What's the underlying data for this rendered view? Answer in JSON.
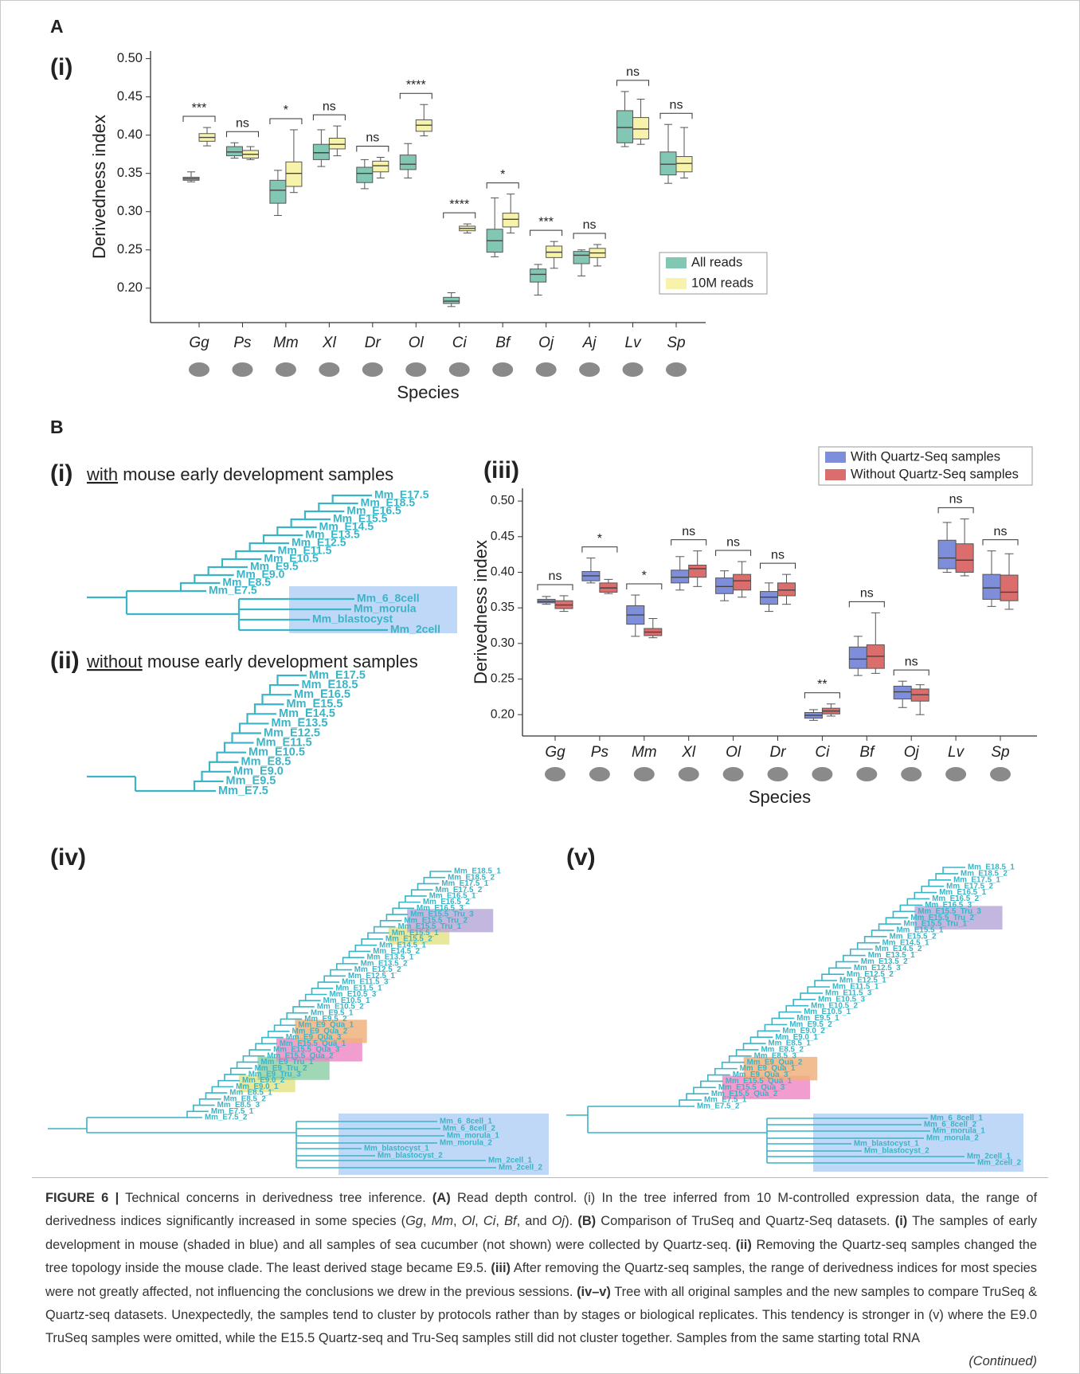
{
  "panels": [
    "A",
    "B"
  ],
  "chart_data": [
    {
      "type": "box",
      "label": "(i)",
      "xlabel": "Species",
      "ylabel": "Derivedness index",
      "categories": [
        "Gg",
        "Ps",
        "Mm",
        "Xl",
        "Dr",
        "Ol",
        "Ci",
        "Bf",
        "Oj",
        "Aj",
        "Lv",
        "Sp"
      ],
      "series": [
        {
          "name": "All reads",
          "color": "#82c7b4",
          "whisker_low": [
            0.339,
            0.37,
            0.295,
            0.359,
            0.33,
            0.344,
            0.176,
            0.241,
            0.191,
            0.216,
            0.385,
            0.337
          ],
          "q1": [
            0.341,
            0.373,
            0.311,
            0.368,
            0.338,
            0.355,
            0.18,
            0.247,
            0.208,
            0.232,
            0.39,
            0.348
          ],
          "median": [
            0.343,
            0.378,
            0.328,
            0.377,
            0.35,
            0.362,
            0.183,
            0.262,
            0.218,
            0.243,
            0.41,
            0.362
          ],
          "q3": [
            0.345,
            0.385,
            0.341,
            0.388,
            0.358,
            0.374,
            0.188,
            0.277,
            0.225,
            0.248,
            0.432,
            0.378
          ],
          "whisker_high": [
            0.352,
            0.39,
            0.354,
            0.407,
            0.368,
            0.389,
            0.194,
            0.318,
            0.231,
            0.25,
            0.457,
            0.414
          ]
        },
        {
          "name": "10M reads",
          "color": "#f7f3aa",
          "whisker_low": [
            0.386,
            0.368,
            0.325,
            0.373,
            0.344,
            0.399,
            0.272,
            0.272,
            0.226,
            0.229,
            0.388,
            0.344
          ],
          "q1": [
            0.392,
            0.37,
            0.333,
            0.382,
            0.352,
            0.405,
            0.275,
            0.28,
            0.24,
            0.24,
            0.395,
            0.352
          ],
          "median": [
            0.397,
            0.375,
            0.35,
            0.388,
            0.36,
            0.413,
            0.278,
            0.29,
            0.247,
            0.246,
            0.408,
            0.363
          ],
          "q3": [
            0.402,
            0.38,
            0.365,
            0.396,
            0.366,
            0.42,
            0.281,
            0.298,
            0.255,
            0.252,
            0.423,
            0.372
          ],
          "whisker_high": [
            0.41,
            0.385,
            0.407,
            0.412,
            0.371,
            0.44,
            0.284,
            0.323,
            0.261,
            0.257,
            0.447,
            0.41
          ]
        }
      ],
      "significance": [
        "***",
        "ns",
        "*",
        "ns",
        "ns",
        "****",
        "****",
        "*",
        "***",
        "ns",
        "ns",
        "ns"
      ],
      "ylim": [
        0.155,
        0.51
      ],
      "yticks": [
        {
          "value": 0.2,
          "label": "0.20"
        },
        {
          "value": 0.25,
          "label": "0.25"
        },
        {
          "value": 0.3,
          "label": "0.30"
        },
        {
          "value": 0.35,
          "label": "0.35"
        },
        {
          "value": 0.4,
          "label": "0.40"
        },
        {
          "value": 0.45,
          "label": "0.45"
        },
        {
          "value": 0.5,
          "label": "0.50"
        }
      ],
      "legend": "lower right"
    },
    {
      "type": "box",
      "label": "(iii)",
      "xlabel": "Species",
      "ylabel": "Derivedness index",
      "categories": [
        "Gg",
        "Ps",
        "Mm",
        "Xl",
        "Ol",
        "Dr",
        "Ci",
        "Bf",
        "Oj",
        "Lv",
        "Sp"
      ],
      "series": [
        {
          "name": "With Quartz-Seq samples",
          "color": "#7f8edb",
          "whisker_low": [
            0.355,
            0.385,
            0.31,
            0.375,
            0.36,
            0.345,
            0.192,
            0.255,
            0.21,
            0.4,
            0.352
          ],
          "q1": [
            0.357,
            0.388,
            0.327,
            0.385,
            0.37,
            0.355,
            0.195,
            0.265,
            0.222,
            0.405,
            0.362
          ],
          "median": [
            0.359,
            0.395,
            0.34,
            0.393,
            0.38,
            0.365,
            0.199,
            0.278,
            0.232,
            0.42,
            0.378
          ],
          "q3": [
            0.362,
            0.401,
            0.353,
            0.403,
            0.392,
            0.373,
            0.203,
            0.295,
            0.24,
            0.445,
            0.397
          ],
          "whisker_high": [
            0.366,
            0.42,
            0.368,
            0.422,
            0.402,
            0.385,
            0.207,
            0.31,
            0.247,
            0.47,
            0.43
          ]
        },
        {
          "name": "Without Quartz-Seq samples",
          "color": "#dc6d6d",
          "whisker_low": [
            0.345,
            0.37,
            0.308,
            0.38,
            0.365,
            0.355,
            0.198,
            0.258,
            0.2,
            0.395,
            0.348
          ],
          "q1": [
            0.349,
            0.372,
            0.311,
            0.393,
            0.375,
            0.367,
            0.201,
            0.265,
            0.219,
            0.4,
            0.36
          ],
          "median": [
            0.354,
            0.378,
            0.316,
            0.405,
            0.388,
            0.375,
            0.205,
            0.282,
            0.228,
            0.417,
            0.372
          ],
          "q3": [
            0.36,
            0.385,
            0.321,
            0.41,
            0.397,
            0.385,
            0.209,
            0.298,
            0.236,
            0.44,
            0.396
          ],
          "whisker_high": [
            0.367,
            0.39,
            0.335,
            0.43,
            0.415,
            0.397,
            0.215,
            0.343,
            0.242,
            0.475,
            0.426
          ]
        }
      ],
      "significance": [
        "ns",
        "*",
        "*",
        "ns",
        "ns",
        "ns",
        "**",
        "ns",
        "ns",
        "ns",
        "ns"
      ],
      "ylim": [
        0.17,
        0.518
      ],
      "yticks": [
        {
          "value": 0.2,
          "label": "0.20"
        },
        {
          "value": 0.25,
          "label": "0.25"
        },
        {
          "value": 0.3,
          "label": "0.30"
        },
        {
          "value": 0.35,
          "label": "0.35"
        },
        {
          "value": 0.4,
          "label": "0.40"
        },
        {
          "value": 0.45,
          "label": "0.45"
        },
        {
          "value": 0.5,
          "label": "0.50"
        }
      ],
      "legend": "above right"
    }
  ],
  "trees": [
    {
      "label": "(i)",
      "title": [
        "with",
        " mouse early development samples"
      ],
      "ladder": [
        "Mm_E7.5",
        "Mm_E8.5",
        "Mm_E9.0",
        "Mm_E9.5",
        "Mm_E10.5",
        "Mm_E11.5",
        "Mm_E12.5",
        "Mm_E13.5",
        "Mm_E14.5",
        "Mm_E15.5",
        "Mm_E16.5",
        "Mm_E18.5",
        "Mm_E17.5"
      ],
      "clade": [
        "Mm_6_8cell",
        "Mm_morula",
        "Mm_blastocyst",
        "Mm_2cell"
      ]
    },
    {
      "label": "(ii)",
      "title": [
        "without",
        " mouse early development samples"
      ],
      "ladder": [
        "Mm_E7.5",
        "Mm_E9.5",
        "Mm_E9.0",
        "Mm_E8.5",
        "Mm_E10.5",
        "Mm_E11.5",
        "Mm_E12.5",
        "Mm_E13.5",
        "Mm_E14.5",
        "Mm_E15.5",
        "Mm_E16.5",
        "Mm_E18.5",
        "Mm_E17.5"
      ]
    },
    {
      "label": "(iv)",
      "ladder": [
        "Mm_E7.5_2",
        "Mm_E7.5_1",
        "Mm_E8.5_3",
        "Mm_E8.5_2",
        "Mm_E8.5_1",
        "Mm_E9.0_1",
        "Mm_E9.0_2",
        "Mm_E9_Tru_3",
        "Mm_E9_Tru_2",
        "Mm_E9_Tru_1",
        "Mm_E15.5_Qua_2",
        "Mm_E15.5_Qua_3",
        "Mm_E15.5_Qua_1",
        "Mm_E9_Qua_3",
        "Mm_E9_Qua_2",
        "Mm_E9_Qua_1",
        "Mm_E9.5_2",
        "Mm_E9.5_1",
        "Mm_E10.5_2",
        "Mm_E10.5_1",
        "Mm_E10.5_3",
        "Mm_E11.5_1",
        "Mm_E11.5_3",
        "Mm_E12.5_1",
        "Mm_E12.5_2",
        "Mm_E13.5_2",
        "Mm_E13.5_1",
        "Mm_E14.5_2",
        "Mm_E14.5_1",
        "Mm_E15.5_2",
        "Mm_E15.5_1",
        "Mm_E15.5_Tru_1",
        "Mm_E15.5_Tru_2",
        "Mm_E15.5_Tru_3",
        "Mm_E16.5_3",
        "Mm_E16.5_2",
        "Mm_E16.5_1",
        "Mm_E17.5_2",
        "Mm_E17.5_1",
        "Mm_E18.5_2",
        "Mm_E18.5_1"
      ],
      "clade": [
        "Mm_6_8cell_1",
        "Mm_6_8cell_2",
        "Mm_morula_1",
        "Mm_morula_2",
        "Mm_blastocyst_1",
        "Mm_blastocyst_2",
        "Mm_2cell_1",
        "Mm_2cell_2"
      ]
    },
    {
      "label": "(v)",
      "ladder": [
        "Mm_E7.5_2",
        "Mm_E7.5_1",
        "Mm_E15.5_Qua_2",
        "Mm_E15.5_Qua_3",
        "Mm_E15.5_Qua_1",
        "Mm_E9_Qua_3",
        "Mm_E9_Qua_1",
        "Mm_E9_Qua_2",
        "Mm_E8.5_3",
        "Mm_E8.5_2",
        "Mm_E8.5_1",
        "Mm_E9.0_1",
        "Mm_E9.0_2",
        "Mm_E9.5_2",
        "Mm_E9.5_1",
        "Mm_E10.5_1",
        "Mm_E10.5_2",
        "Mm_E10.5_3",
        "Mm_E11.5_3",
        "Mm_E11.5_1",
        "Mm_E12.5_1",
        "Mm_E12.5_2",
        "Mm_E12.5_3",
        "Mm_E13.5_2",
        "Mm_E13.5_1",
        "Mm_E14.5_2",
        "Mm_E14.5_1",
        "Mm_E15.5_2",
        "Mm_E15.5_1",
        "Mm_E15.5_Tru_1",
        "Mm_E15.5_Tru_2",
        "Mm_E15.5_Tru_3",
        "Mm_E16.5_3",
        "Mm_E16.5_2",
        "Mm_E16.5_1",
        "Mm_E17.5_2",
        "Mm_E17.5_1",
        "Mm_E18.5_2",
        "Mm_E18.5_1"
      ],
      "clade": [
        "Mm_6_8cell_1",
        "Mm_6_8cell_2",
        "Mm_morula_1",
        "Mm_morula_2",
        "Mm_blastocyst_1",
        "Mm_blastocyst_2",
        "Mm_2cell_1",
        "Mm_2cell_2"
      ]
    }
  ],
  "caption": {
    "label": "FIGURE 6 |",
    "segments": [
      " Technical concerns in derivedness tree inference. ",
      "(A)",
      " Read depth control. (i) In the tree inferred from 10 M-controlled expression data, the range of derivedness indices significantly increased in some species (",
      "Gg",
      ", ",
      "Mm",
      ", ",
      "Ol",
      ", ",
      "Ci",
      ", ",
      "Bf",
      ", and ",
      "Oj",
      "). ",
      "(B)",
      " Comparison of TruSeq and Quartz-Seq datasets. ",
      "(i)",
      " The samples of early development in mouse (shaded in blue) and all samples of sea cucumber (not shown) were collected by Quartz-seq. ",
      "(ii)",
      " Removing the Quartz-seq samples changed the tree topology inside the mouse clade. The least derived stage became E9.5. ",
      "(iii)",
      " After removing the Quartz-seq samples, the range of derivedness indices for most species were not greatly affected, not influencing the conclusions we drew in the previous sessions. ",
      "(iv–v)",
      " Tree with all original samples and the new samples to compare TruSeq & Quartz-seq datasets. Unexpectedly, the samples tend to cluster by protocols rather than by stages or biological replicates. This tendency is stronger in (v) where the E9.0 TruSeq samples were omitted, while the E15.5 Quartz-seq and Tru-Seq samples still did not cluster together. Samples from the same starting total RNA"
    ],
    "continued": "(Continued)"
  }
}
